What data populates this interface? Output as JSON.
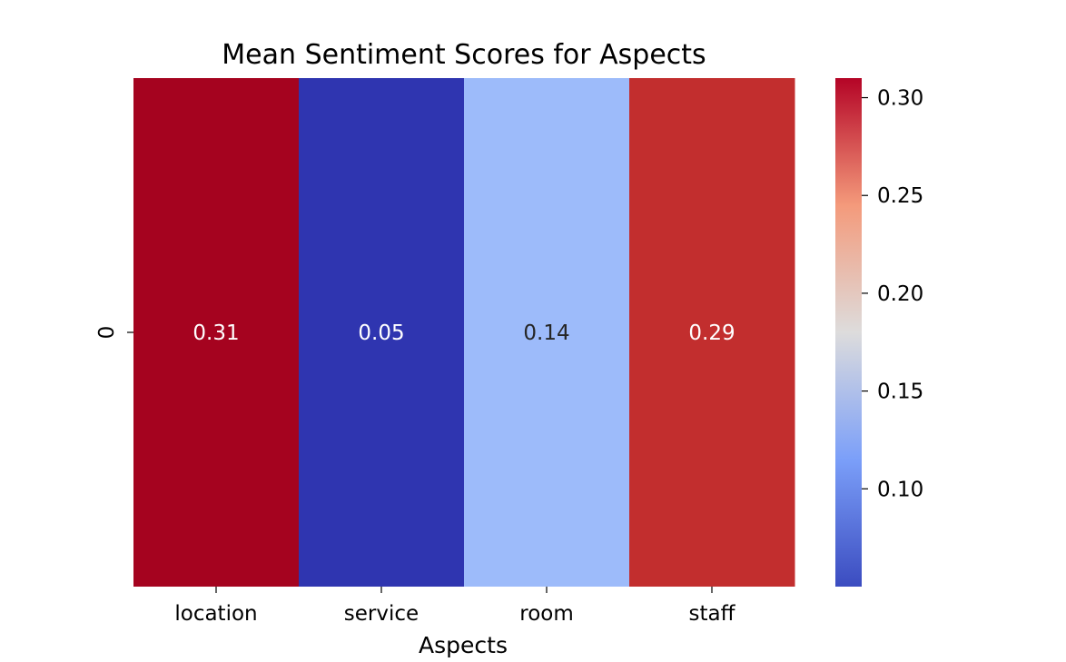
{
  "chart_data": {
    "type": "heatmap",
    "title": "Mean Sentiment Scores for Aspects",
    "xlabel": "Aspects",
    "ylabel": "",
    "rows": [
      "0"
    ],
    "categories": [
      "location",
      "service",
      "room",
      "staff"
    ],
    "values": [
      [
        0.31,
        0.05,
        0.14,
        0.29
      ]
    ],
    "value_labels": [
      "0.31",
      "0.05",
      "0.14",
      "0.29"
    ],
    "colormap": "coolwarm",
    "color_range": [
      0.05,
      0.31
    ],
    "colorbar_ticks": [
      0.1,
      0.15,
      0.2,
      0.25,
      0.3
    ],
    "colorbar_tick_labels": [
      "0.10",
      "0.15",
      "0.20",
      "0.25",
      "0.30"
    ],
    "colorbar_placement": "right",
    "grid": false,
    "cell_colors": [
      "#a5031f",
      "#2f35b0",
      "#9dbbfa",
      "#c22e2e"
    ],
    "annotation_colors": [
      "#ffffff",
      "#ffffff",
      "#262626",
      "#ffffff"
    ]
  }
}
